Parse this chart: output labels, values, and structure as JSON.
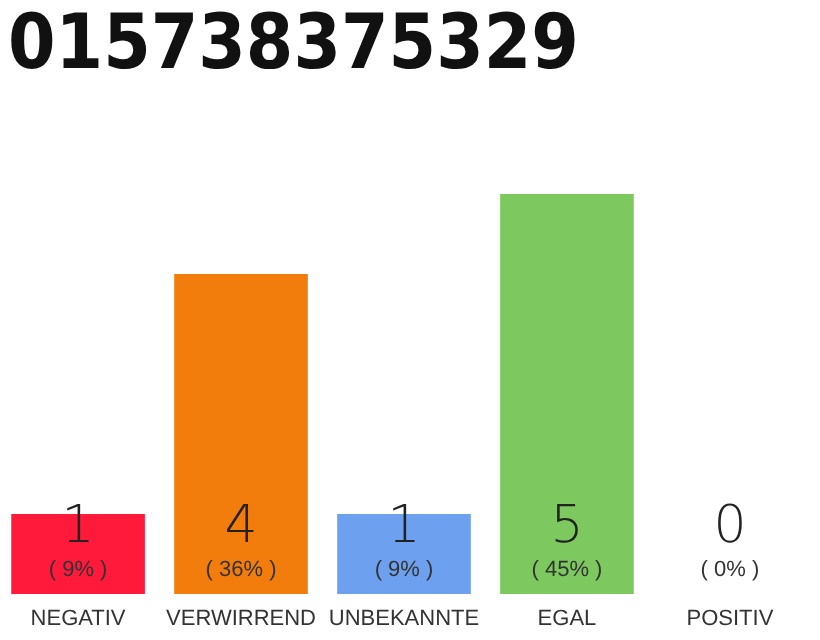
{
  "chart_data": {
    "type": "bar",
    "title": "015738375329",
    "categories": [
      "NEGATIV",
      "VERWIRREND",
      "UNBEKANNTE",
      "EGAL",
      "POSITIV"
    ],
    "values": [
      1,
      4,
      1,
      5,
      0
    ],
    "colors": [
      "#ff1a3c",
      "#f27d0c",
      "#6ea0f0",
      "#7ec95f",
      "#c8c8c8"
    ],
    "data_labels": true,
    "annotations": [
      "( 9% )",
      "( 36% )",
      "( 9% )",
      "( 45% )",
      "( 0% )"
    ]
  }
}
